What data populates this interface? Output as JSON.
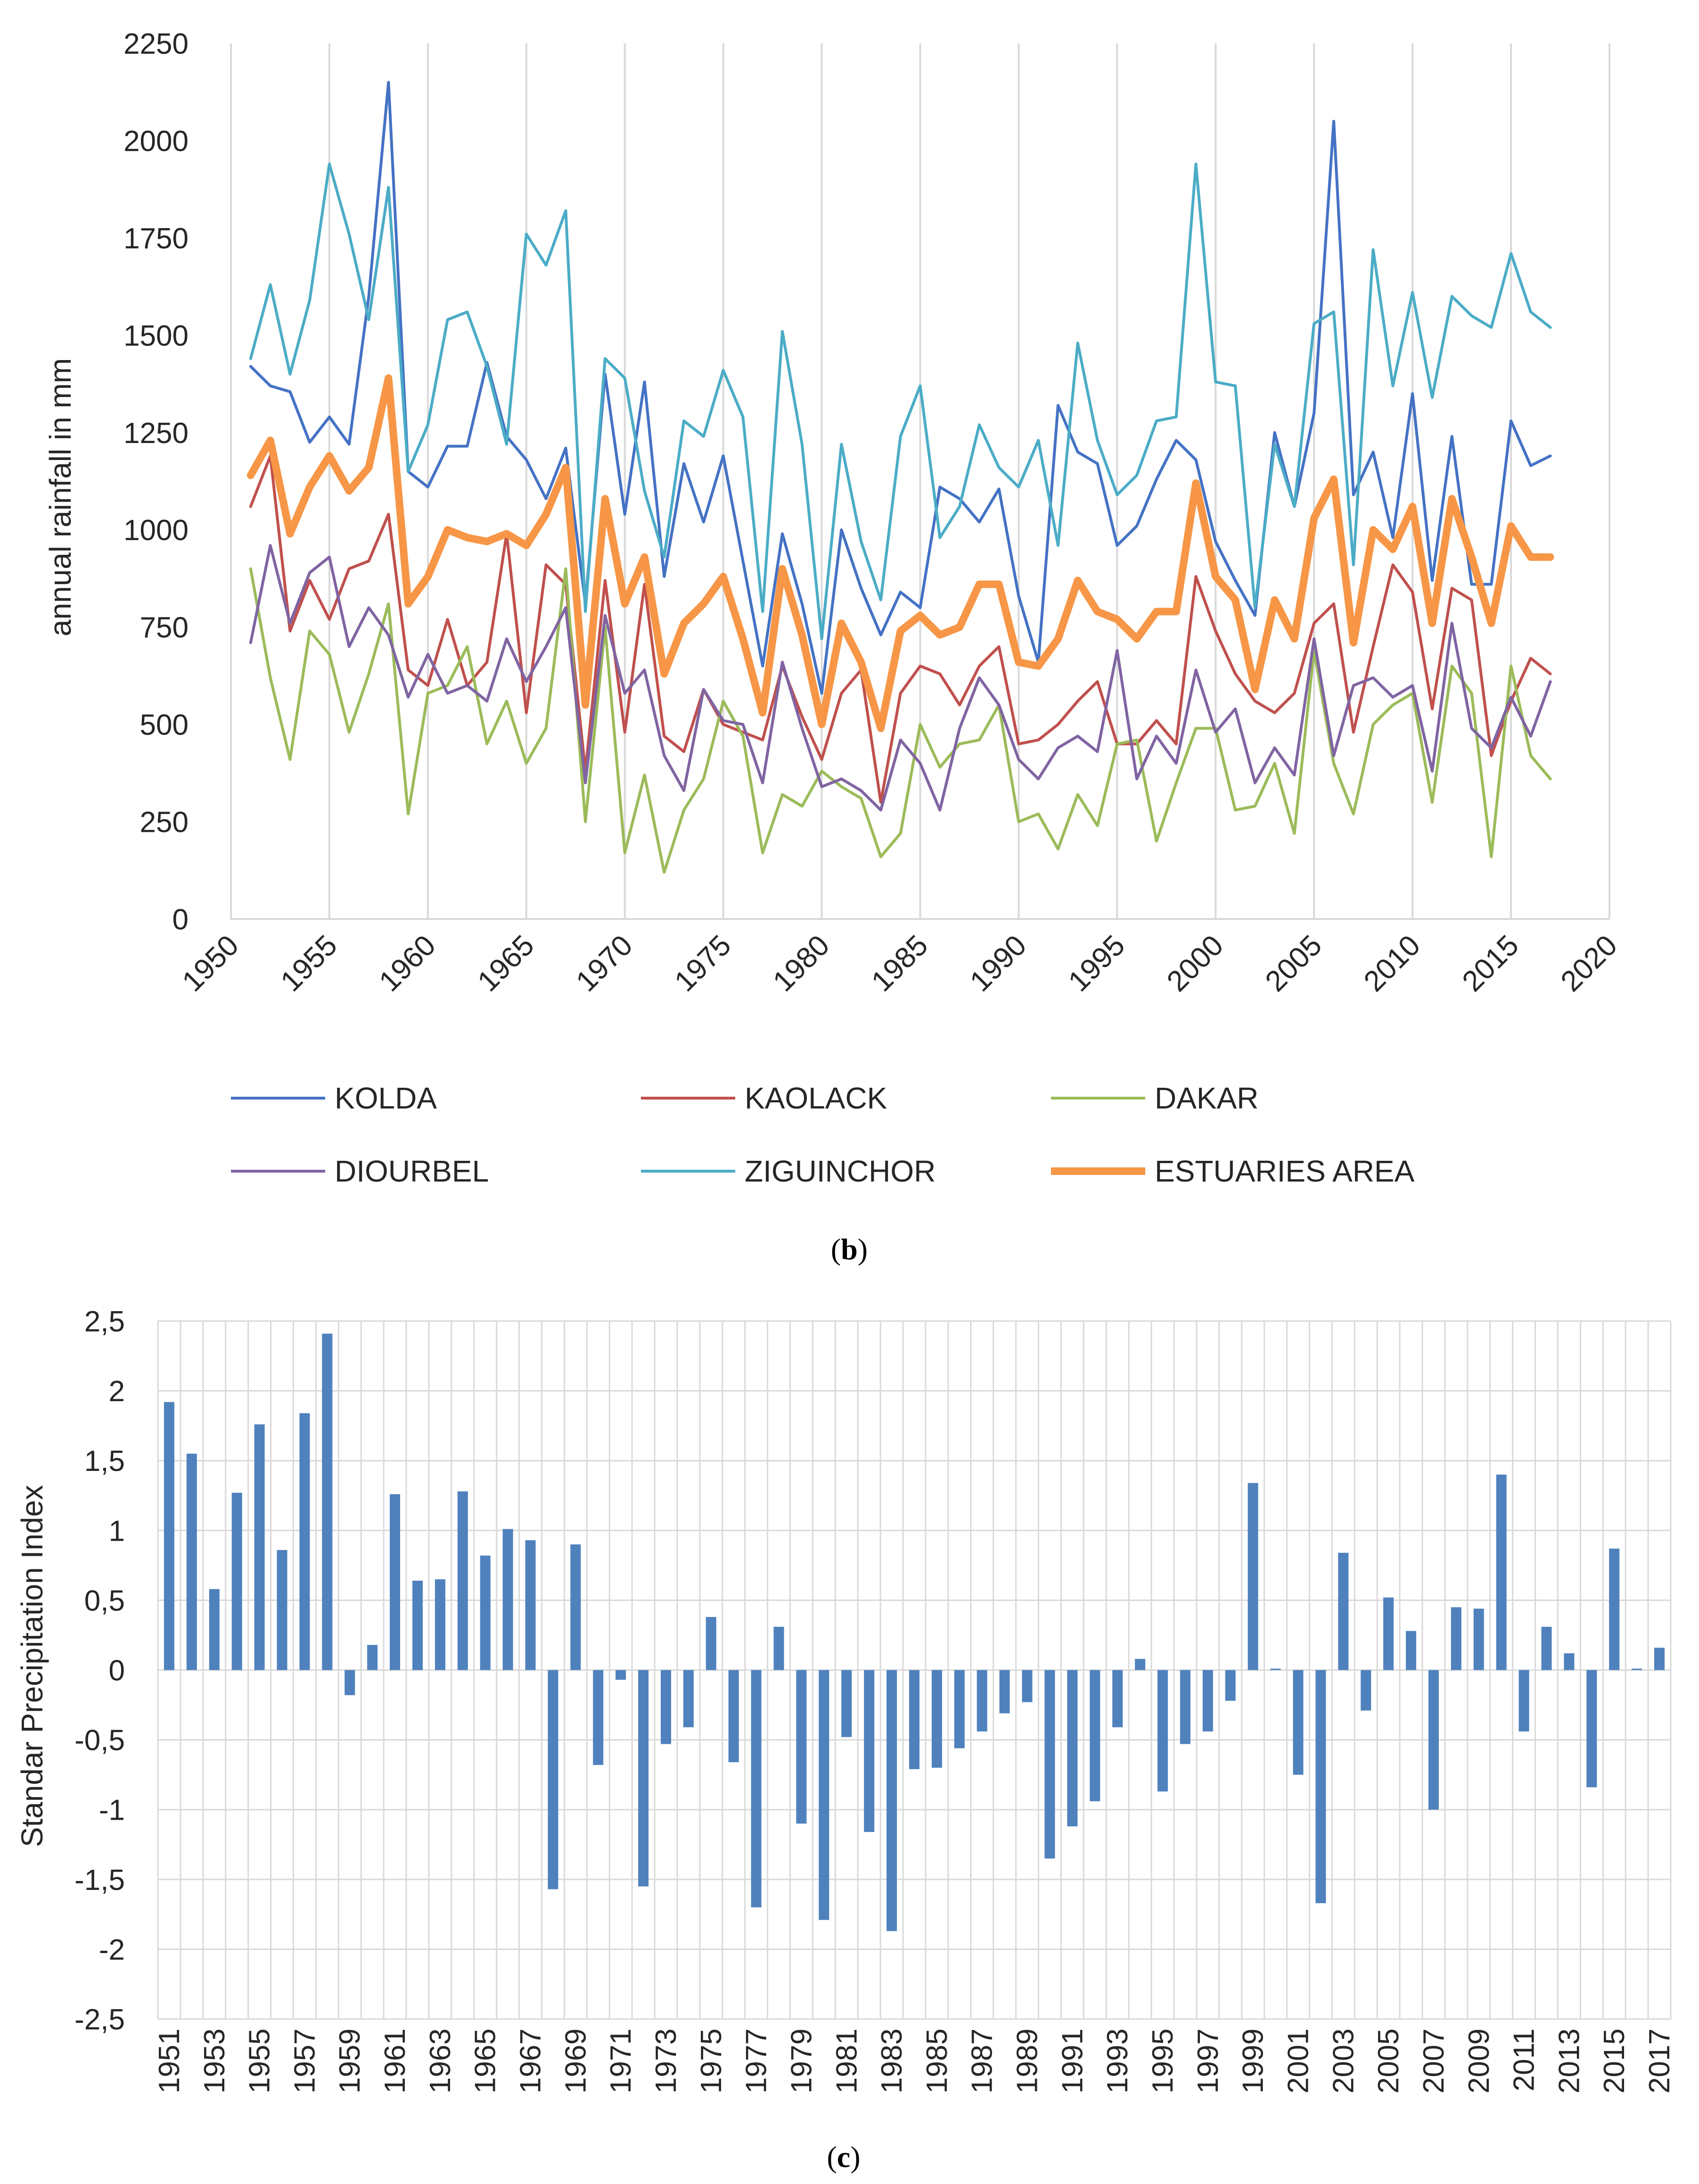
{
  "chart_data": [
    {
      "type": "line",
      "caption": {
        "open": "(",
        "letter": "b",
        "close": ")"
      },
      "ylabel": "annual rainfall in mm",
      "xlim": [
        1950,
        2020
      ],
      "ylim": [
        0,
        2250
      ],
      "x_ticks": [
        1950,
        1955,
        1960,
        1965,
        1970,
        1975,
        1980,
        1985,
        1990,
        1995,
        2000,
        2005,
        2010,
        2015,
        2020
      ],
      "y_ticks": [
        0,
        250,
        500,
        750,
        1000,
        1250,
        1500,
        1750,
        2000,
        2250
      ],
      "grid": "vertical",
      "legend_position": "bottom",
      "x": [
        1951,
        1952,
        1953,
        1954,
        1955,
        1956,
        1957,
        1958,
        1959,
        1960,
        1961,
        1962,
        1963,
        1964,
        1965,
        1966,
        1967,
        1968,
        1969,
        1970,
        1971,
        1972,
        1973,
        1974,
        1975,
        1976,
        1977,
        1978,
        1979,
        1980,
        1981,
        1982,
        1983,
        1984,
        1985,
        1986,
        1987,
        1988,
        1989,
        1990,
        1991,
        1992,
        1993,
        1994,
        1995,
        1996,
        1997,
        1998,
        1999,
        2000,
        2001,
        2002,
        2003,
        2004,
        2005,
        2006,
        2007,
        2008,
        2009,
        2010,
        2011,
        2012,
        2013,
        2014,
        2015,
        2016,
        2017
      ],
      "series": [
        {
          "name": "KOLDA",
          "color": "#4472c4",
          "width": 6,
          "values": [
            1420,
            1370,
            1355,
            1225,
            1290,
            1220,
            1600,
            2150,
            1150,
            1110,
            1215,
            1215,
            1430,
            1240,
            1180,
            1080,
            1210,
            810,
            1400,
            1040,
            1380,
            880,
            1170,
            1020,
            1190,
            920,
            650,
            990,
            810,
            580,
            1000,
            850,
            730,
            840,
            800,
            1110,
            1080,
            1020,
            1105,
            830,
            660,
            1320,
            1200,
            1170,
            960,
            1010,
            1130,
            1230,
            1180,
            970,
            870,
            780,
            1250,
            1060,
            1300,
            2050,
            1090,
            1200,
            980,
            1350,
            870,
            1240,
            860,
            860,
            1280,
            1165,
            1190
          ]
        },
        {
          "name": "KAOLACK",
          "color": "#c0504d",
          "width": 6,
          "values": [
            1060,
            1190,
            740,
            870,
            770,
            900,
            920,
            1040,
            640,
            600,
            770,
            600,
            660,
            990,
            530,
            910,
            860,
            380,
            870,
            480,
            860,
            470,
            430,
            590,
            500,
            480,
            460,
            650,
            520,
            410,
            580,
            640,
            300,
            580,
            650,
            630,
            550,
            650,
            700,
            450,
            460,
            500,
            560,
            610,
            450,
            450,
            510,
            450,
            880,
            740,
            630,
            560,
            530,
            580,
            760,
            810,
            480,
            700,
            910,
            840,
            540,
            850,
            820,
            420,
            560,
            670,
            630
          ]
        },
        {
          "name": "DAKAR",
          "color": "#9bbb59",
          "width": 6,
          "values": [
            900,
            620,
            410,
            740,
            680,
            480,
            630,
            810,
            270,
            580,
            600,
            700,
            450,
            560,
            400,
            490,
            900,
            250,
            750,
            170,
            370,
            120,
            280,
            360,
            560,
            470,
            170,
            320,
            290,
            380,
            340,
            310,
            160,
            220,
            500,
            390,
            450,
            460,
            550,
            250,
            270,
            180,
            320,
            240,
            450,
            460,
            200,
            350,
            490,
            490,
            280,
            290,
            400,
            220,
            690,
            400,
            270,
            500,
            550,
            580,
            300,
            650,
            580,
            160,
            650,
            420,
            360
          ]
        },
        {
          "name": "DIOURBEL",
          "color": "#8064a2",
          "width": 6,
          "values": [
            710,
            960,
            760,
            890,
            930,
            700,
            800,
            730,
            570,
            680,
            580,
            600,
            560,
            720,
            610,
            700,
            800,
            350,
            780,
            580,
            640,
            420,
            330,
            590,
            510,
            500,
            350,
            660,
            490,
            340,
            360,
            330,
            280,
            460,
            400,
            280,
            490,
            620,
            550,
            410,
            360,
            440,
            470,
            430,
            690,
            360,
            470,
            400,
            640,
            480,
            540,
            350,
            440,
            370,
            720,
            420,
            600,
            620,
            570,
            600,
            380,
            760,
            490,
            440,
            570,
            470,
            610
          ]
        },
        {
          "name": "ZIGUINCHOR",
          "color": "#4bacc6",
          "width": 6,
          "values": [
            1440,
            1630,
            1400,
            1590,
            1940,
            1760,
            1540,
            1880,
            1150,
            1270,
            1540,
            1560,
            1420,
            1220,
            1760,
            1680,
            1820,
            790,
            1440,
            1390,
            1100,
            930,
            1280,
            1240,
            1410,
            1290,
            790,
            1510,
            1220,
            720,
            1220,
            970,
            820,
            1240,
            1370,
            980,
            1060,
            1270,
            1160,
            1110,
            1230,
            960,
            1480,
            1230,
            1090,
            1140,
            1280,
            1290,
            1940,
            1380,
            1370,
            800,
            1220,
            1060,
            1530,
            1560,
            910,
            1720,
            1370,
            1610,
            1340,
            1600,
            1550,
            1520,
            1710,
            1560,
            1520
          ]
        },
        {
          "name": "ESTUARIES AREA",
          "color": "#f79646",
          "width": 16,
          "values": [
            1140,
            1230,
            990,
            1110,
            1190,
            1100,
            1160,
            1390,
            810,
            880,
            1000,
            980,
            970,
            990,
            960,
            1040,
            1160,
            550,
            1080,
            810,
            930,
            630,
            760,
            810,
            880,
            720,
            530,
            900,
            730,
            500,
            760,
            660,
            490,
            740,
            780,
            730,
            750,
            860,
            860,
            660,
            650,
            720,
            870,
            790,
            770,
            720,
            790,
            790,
            1120,
            880,
            820,
            590,
            820,
            720,
            1030,
            1130,
            710,
            1000,
            950,
            1060,
            760,
            1080,
            930,
            760,
            1010,
            930,
            930
          ]
        }
      ]
    },
    {
      "type": "bar",
      "caption": {
        "open": "(",
        "letter": "c",
        "close": ")"
      },
      "ylabel": "Standar Precipitation Index",
      "ylim": [
        -2.5,
        2.5
      ],
      "y_ticks": [
        -2.5,
        -2,
        -1.5,
        -1,
        -0.5,
        0,
        0.5,
        1,
        1.5,
        2,
        2.5
      ],
      "y_tick_labels": [
        "-2,5",
        "-2",
        "-1,5",
        "-1",
        "-0,5",
        "0",
        "0,5",
        "1",
        "1,5",
        "2",
        "2,5"
      ],
      "x_label_every": 2,
      "grid": "both",
      "color": "#4f81bd",
      "categories": [
        "1951",
        "1952",
        "1953",
        "1954",
        "1955",
        "1956",
        "1957",
        "1958",
        "1959",
        "1960",
        "1961",
        "1962",
        "1963",
        "1964",
        "1965",
        "1966",
        "1967",
        "1968",
        "1969",
        "1970",
        "1971",
        "1972",
        "1973",
        "1974",
        "1975",
        "1976",
        "1977",
        "1978",
        "1979",
        "1980",
        "1981",
        "1982",
        "1983",
        "1984",
        "1985",
        "1986",
        "1987",
        "1988",
        "1989",
        "1990",
        "1991",
        "1992",
        "1993",
        "1994",
        "1995",
        "1996",
        "1997",
        "1998",
        "1999",
        "2000",
        "2001",
        "2002",
        "2003",
        "2004",
        "2005",
        "2006",
        "2007",
        "2008",
        "2009",
        "2010",
        "2011",
        "2012",
        "2013",
        "2014",
        "2015",
        "2016",
        "2017"
      ],
      "values": [
        1.92,
        1.55,
        0.58,
        1.27,
        1.76,
        0.86,
        1.84,
        2.41,
        -0.18,
        0.18,
        1.26,
        0.64,
        0.65,
        1.28,
        0.82,
        1.01,
        0.93,
        -1.57,
        0.9,
        -0.68,
        -0.07,
        -1.55,
        -0.53,
        -0.41,
        0.38,
        -0.66,
        -1.7,
        0.31,
        -1.1,
        -1.79,
        -0.48,
        -1.16,
        -1.87,
        -0.71,
        -0.7,
        -0.56,
        -0.44,
        -0.31,
        -0.23,
        -1.35,
        -1.12,
        -0.94,
        -0.41,
        0.08,
        -0.87,
        -0.53,
        -0.44,
        -0.22,
        1.34,
        0.01,
        -0.75,
        -1.67,
        0.84,
        -0.29,
        0.52,
        0.28,
        -1.0,
        0.45,
        0.44,
        1.4,
        -0.44,
        0.31,
        0.12,
        -0.84,
        0.87,
        0.01,
        0.16
      ]
    }
  ]
}
